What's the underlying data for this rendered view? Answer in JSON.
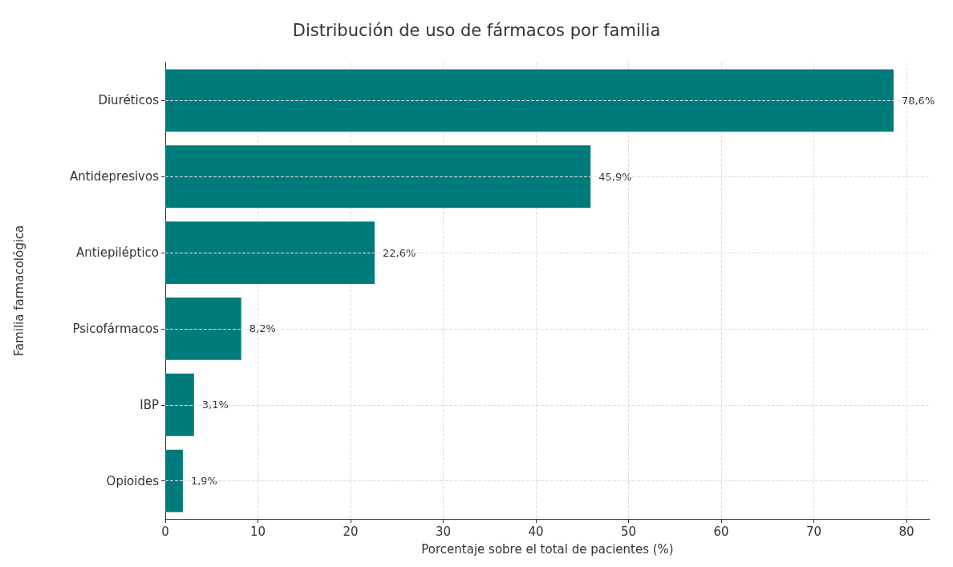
{
  "chart_data": {
    "type": "bar",
    "orientation": "horizontal",
    "title": "Distribución de uso de fármacos por familia",
    "xlabel": "Porcentaje sobre el total de pacientes (%)",
    "ylabel": "Familia farmacológica",
    "categories": [
      "Diuréticos",
      "Antidepresivos",
      "Antiepiléptico",
      "Psicofármacos",
      "IBP",
      "Opioides"
    ],
    "values": [
      78.6,
      45.9,
      22.6,
      8.2,
      3.1,
      1.9
    ],
    "value_labels": [
      "78,6%",
      "45,9%",
      "22,6%",
      "8,2%",
      "3,1%",
      "1,9%"
    ],
    "color": "#007b7b",
    "xlim": [
      0,
      82.5
    ],
    "xticks": [
      0,
      10,
      20,
      30,
      40,
      50,
      60,
      70,
      80
    ],
    "grid": true
  }
}
